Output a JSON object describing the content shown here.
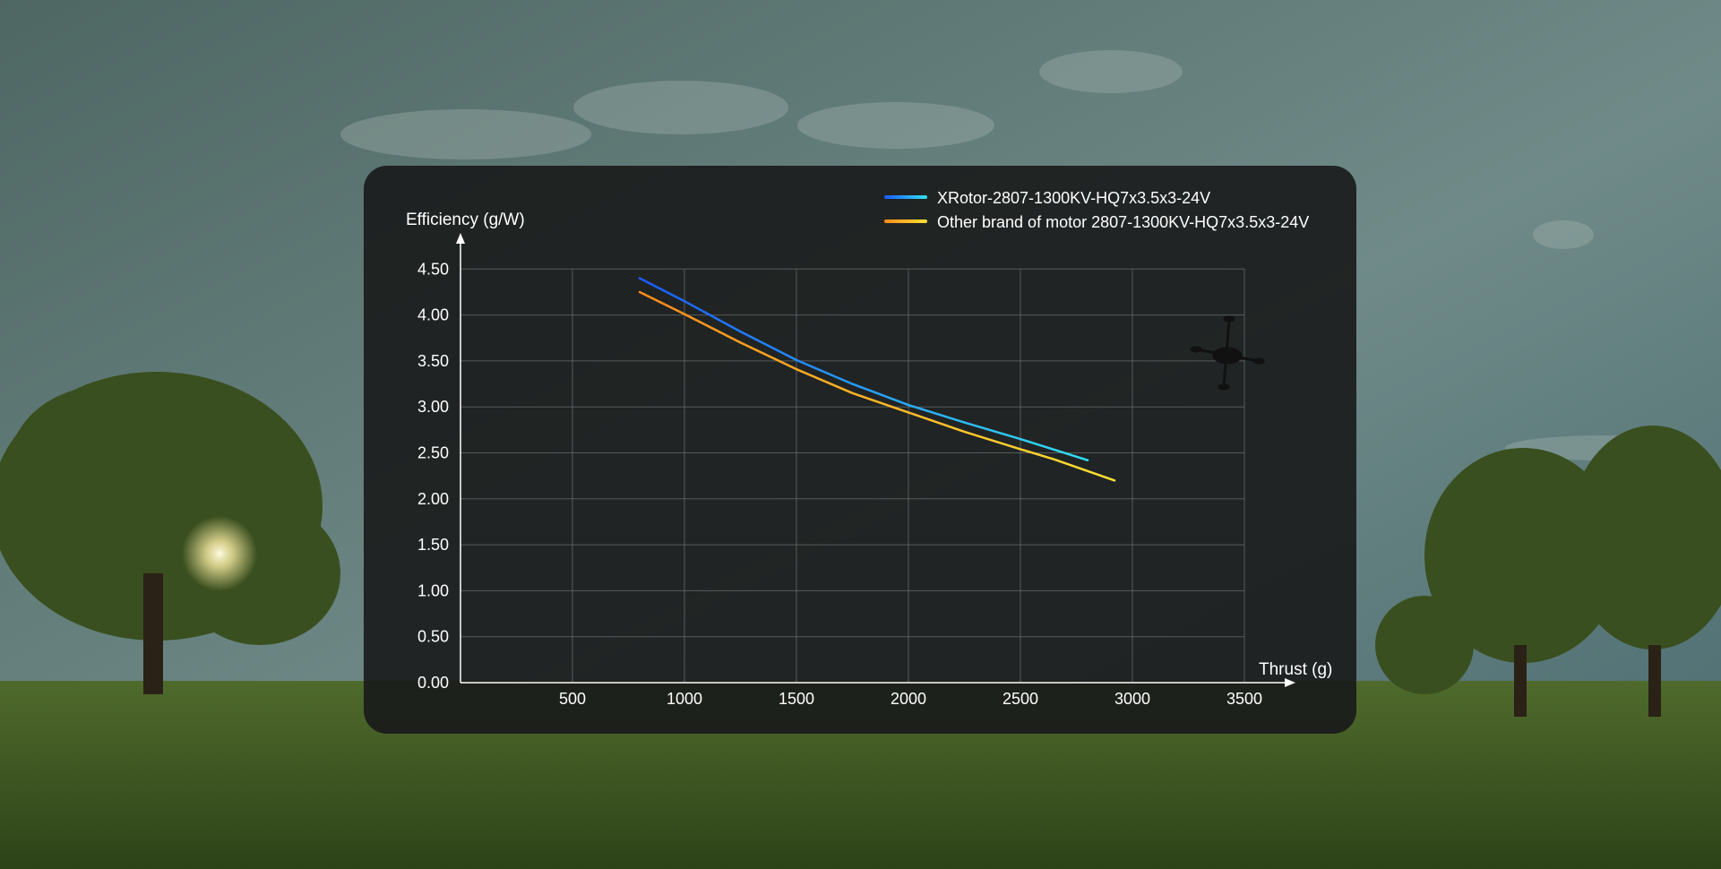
{
  "chart_data": {
    "type": "line",
    "title": "",
    "xlabel": "Thrust (g)",
    "ylabel": "Efficiency (g/W)",
    "xlim": [
      0,
      3500
    ],
    "ylim": [
      0,
      4.5
    ],
    "x_ticks": [
      "500",
      "1000",
      "1500",
      "2000",
      "2500",
      "3000",
      "3500"
    ],
    "y_ticks": [
      "0.00",
      "0.50",
      "1.00",
      "1.50",
      "2.00",
      "2.50",
      "3.00",
      "3.50",
      "4.00",
      "4.50"
    ],
    "grid": true,
    "legend_position": "top-right",
    "series": [
      {
        "name": "XRotor-2807-1300KV-HQ7x3.5x3-24V",
        "color_start": "#1a5cff",
        "color_end": "#33e0f2",
        "x": [
          800,
          1000,
          1250,
          1500,
          1750,
          2000,
          2250,
          2500,
          2800
        ],
        "y": [
          4.4,
          4.15,
          3.82,
          3.51,
          3.25,
          3.02,
          2.83,
          2.65,
          2.42
        ]
      },
      {
        "name": "Other brand of motor 2807-1300KV-HQ7x3.5x3-24V",
        "color_start": "#ff8c1a",
        "color_end": "#ffe033",
        "x": [
          800,
          1000,
          1250,
          1500,
          1750,
          2000,
          2250,
          2500,
          2650,
          2920
        ],
        "y": [
          4.25,
          4.01,
          3.7,
          3.41,
          3.15,
          2.94,
          2.73,
          2.54,
          2.43,
          2.2
        ]
      }
    ]
  }
}
